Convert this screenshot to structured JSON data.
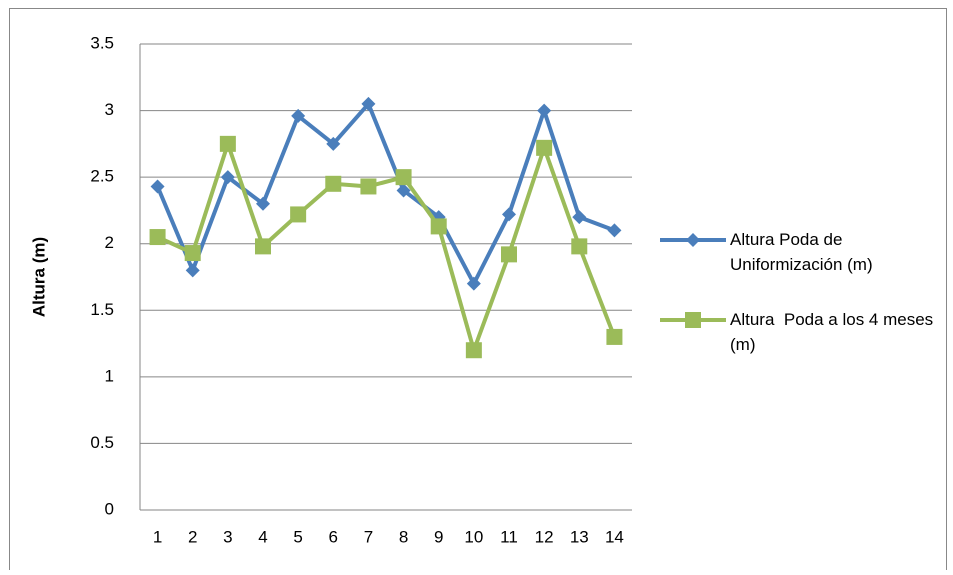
{
  "chart_data": {
    "type": "line",
    "y_label": "Altura (m)",
    "categories": [
      "1",
      "2",
      "3",
      "4",
      "5",
      "6",
      "7",
      "8",
      "9",
      "10",
      "11",
      "12",
      "13",
      "14"
    ],
    "series": [
      {
        "name": "Altura Poda de Uniformización (m)",
        "color": "#4a7ebb",
        "marker": "diamond",
        "values": [
          2.43,
          1.8,
          2.5,
          2.3,
          2.96,
          2.75,
          3.05,
          2.4,
          2.2,
          1.7,
          2.22,
          3.0,
          2.2,
          2.1
        ]
      },
      {
        "name": "Altura  Poda a los 4 meses (m)",
        "color": "#9bbb59",
        "marker": "square",
        "values": [
          2.05,
          1.93,
          2.75,
          1.98,
          2.22,
          2.45,
          2.43,
          2.5,
          2.13,
          1.2,
          1.92,
          2.72,
          1.98,
          1.3
        ]
      }
    ],
    "ylim": [
      0,
      3.5
    ],
    "yticks": [
      0,
      0.5,
      1,
      1.5,
      2,
      2.5,
      3,
      3.5
    ],
    "grid": true,
    "legend": "right"
  }
}
